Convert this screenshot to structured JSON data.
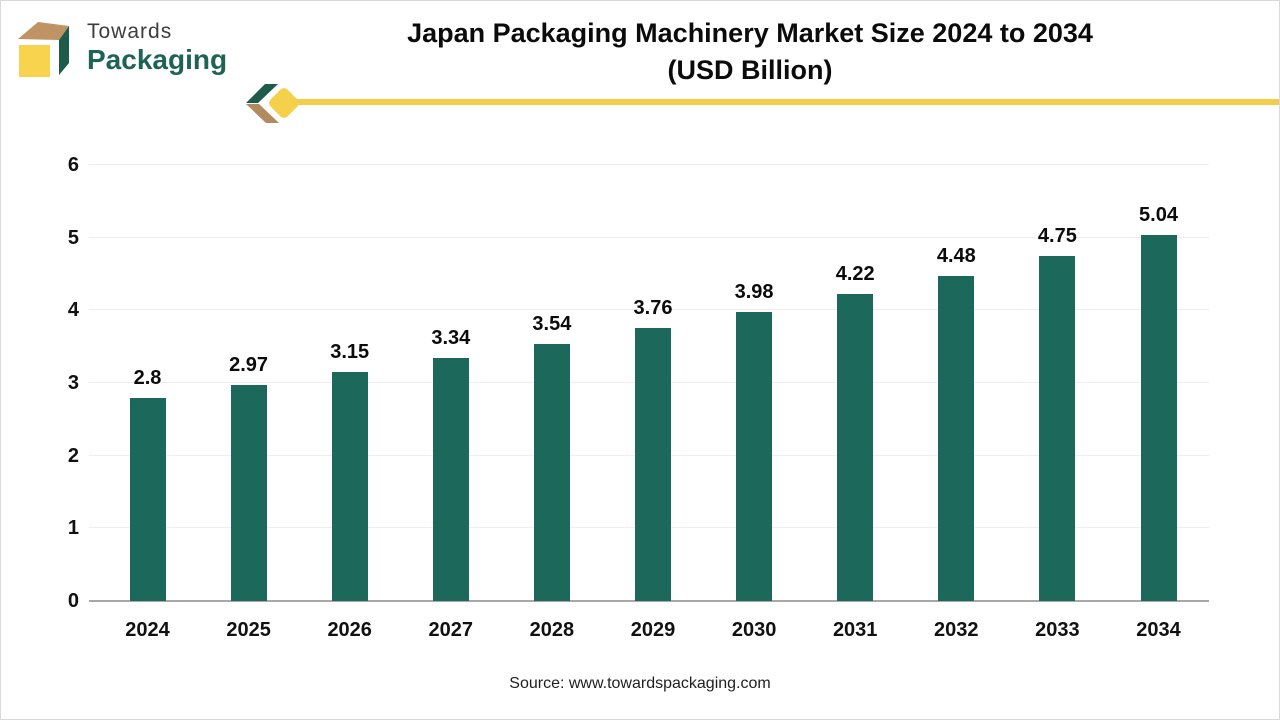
{
  "logo": {
    "brand_top": "Towards",
    "brand_bottom": "Packaging"
  },
  "title": {
    "line1": "Japan Packaging Machinery Market Size 2024 to 2034",
    "line2": "(USD Billion)"
  },
  "source": "Source: www.towardspackaging.com",
  "colors": {
    "bar": "#1c685a",
    "gridline": "#eeeeee",
    "baseline": "#a8a8a8",
    "accent_line": "#f2ce4a",
    "logo_green": "#1e5b4b",
    "logo_tan": "#c09365",
    "logo_yellow": "#f8d34d",
    "chevron_green": "#1e5b4b",
    "chevron_tan": "#b28a5f"
  },
  "chart_data": {
    "type": "bar",
    "title": "Japan Packaging Machinery Market Size 2024 to 2034 (USD Billion)",
    "categories": [
      "2024",
      "2025",
      "2026",
      "2027",
      "2028",
      "2029",
      "2030",
      "2031",
      "2032",
      "2033",
      "2034"
    ],
    "values": [
      2.8,
      2.97,
      3.15,
      3.34,
      3.54,
      3.76,
      3.98,
      4.22,
      4.48,
      4.75,
      5.04
    ],
    "xlabel": "",
    "ylabel": "",
    "ylim": [
      0,
      6
    ],
    "yticks": [
      0,
      1,
      2,
      3,
      4,
      5,
      6
    ],
    "grid": true,
    "legend": false,
    "bar_color": "#1c685a",
    "value_labels": true
  }
}
